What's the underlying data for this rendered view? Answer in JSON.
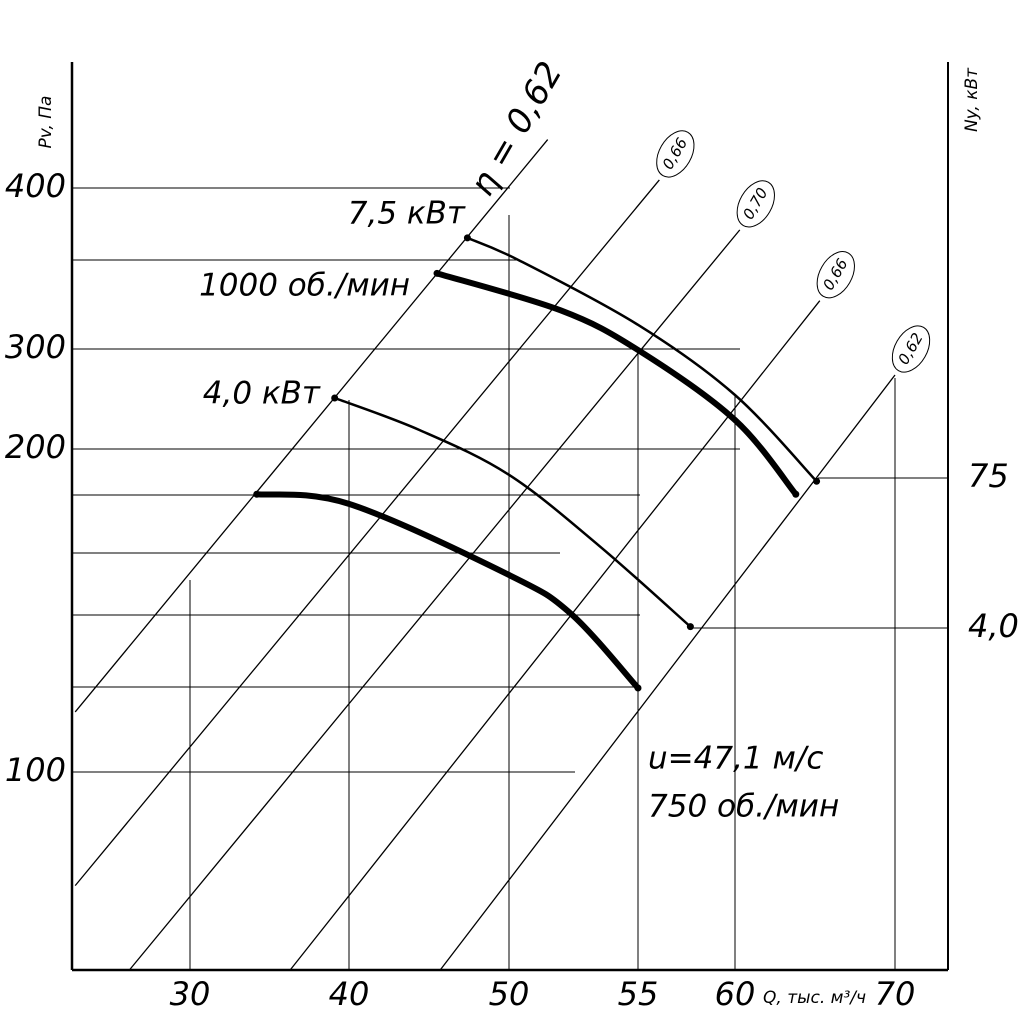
{
  "chart_data": {
    "type": "line",
    "y_label": "Pv, Па",
    "y2_label": "Ny, кВт",
    "x_label": "Q, тыс. м³/ч",
    "xlim": [
      22.6,
      73.3
    ],
    "xticks": [
      30,
      40,
      50,
      55,
      60,
      70
    ],
    "ylim": [
      39,
      478
    ],
    "yticks": [
      100,
      200,
      300,
      400
    ],
    "y2lim": [
      -158,
      272
    ],
    "y2ticks": [
      {
        "value": 4,
        "label": "4,0"
      },
      75
    ],
    "series": [
      {
        "name": "7,5 кВт",
        "color": "#000000",
        "x": [
          47.4,
          50.4,
          55,
          60,
          65.1
        ],
        "values": [
          369,
          355,
          315,
          254,
          190
        ]
      },
      {
        "name": "1000 об./мин",
        "color": "#000000",
        "x": [
          45.5,
          52,
          55,
          60,
          63.8
        ],
        "values": [
          347,
          324,
          299,
          229,
          186
        ]
      },
      {
        "name": "4,0 кВт",
        "color": "#000000",
        "x": [
          39.1,
          44.4,
          50,
          53.5,
          57.7
        ],
        "values": [
          251,
          219,
          192,
          170,
          145
        ]
      },
      {
        "name": "750 об./мин",
        "color": "#000000",
        "x": [
          34.2,
          40,
          50,
          52.4,
          55
        ],
        "values": [
          186,
          183,
          161,
          149,
          126
        ]
      }
    ],
    "efficiency_lines": [
      {
        "name": "η = 0,62",
        "x": [
          22.8,
          51.5
        ],
        "values": [
          118.6,
          430
        ]
      },
      {
        "name": "0,66",
        "x": [
          22.8,
          56.1
        ],
        "values": [
          65,
          405
        ]
      },
      {
        "name": "0,70",
        "x": [
          26.2,
          60.3
        ],
        "values": [
          39,
          374
        ]
      },
      {
        "name": "0,66",
        "x": [
          36.3,
          65.3
        ],
        "values": [
          39,
          330
        ]
      },
      {
        "name": "0,62",
        "x": [
          45.7,
          70
        ],
        "values": [
          39,
          274
        ]
      }
    ],
    "annotation": "u=47,1 м/с"
  }
}
